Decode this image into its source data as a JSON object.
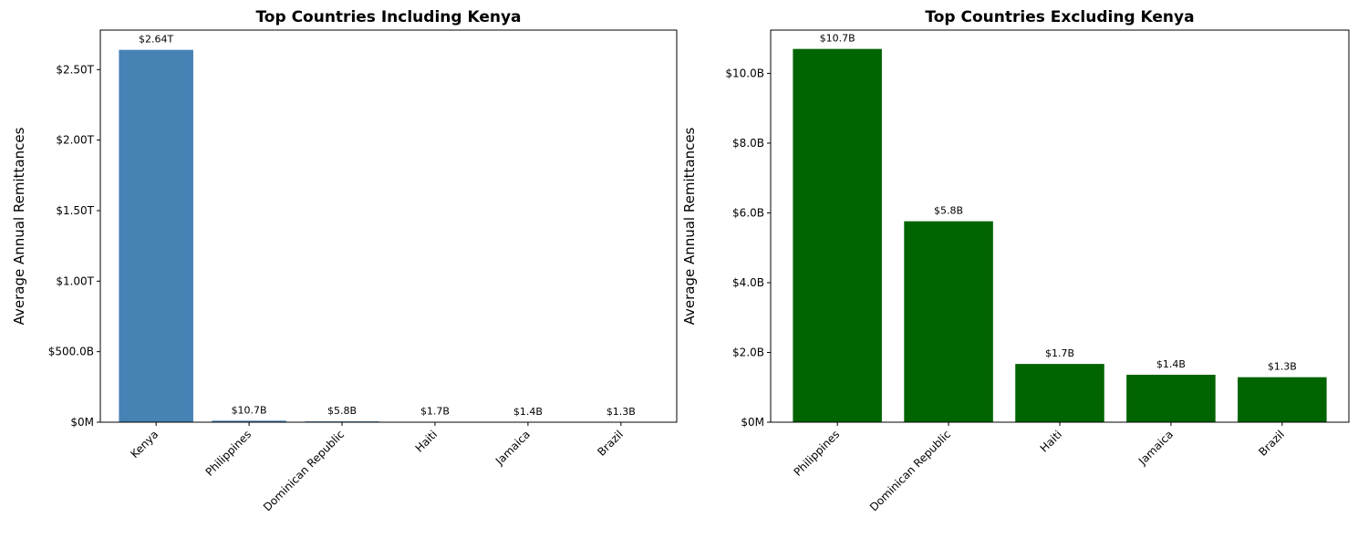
{
  "chart_data": [
    {
      "type": "bar",
      "title": "Top Countries Including Kenya",
      "xlabel": "",
      "ylabel": "Average Annual Remittances",
      "categories": [
        "Kenya",
        "Philippines",
        "Dominican Republic",
        "Haiti",
        "Jamaica",
        "Brazil"
      ],
      "values": [
        2640000000000,
        10700000000,
        5800000000,
        1700000000,
        1400000000,
        1300000000
      ],
      "data_labels": [
        "$2.64T",
        "$10.7B",
        "$5.8B",
        "$1.7B",
        "$1.4B",
        "$1.3B"
      ],
      "ylim": [
        0,
        2780000000000
      ],
      "yticks": [
        0,
        500000000000,
        1000000000000,
        1500000000000,
        2000000000000,
        2500000000000
      ],
      "ytick_labels": [
        "$0M",
        "$500.0B",
        "$1.00T",
        "$1.50T",
        "$2.00T",
        "$2.50T"
      ],
      "bar_color": "#4682b4",
      "grid": false,
      "legend": "none"
    },
    {
      "type": "bar",
      "title": "Top Countries Excluding Kenya",
      "xlabel": "",
      "ylabel": "Average Annual Remittances",
      "categories": [
        "Philippines",
        "Dominican Republic",
        "Haiti",
        "Jamaica",
        "Brazil"
      ],
      "values": [
        10700000000,
        5760000000,
        1670000000,
        1360000000,
        1290000000
      ],
      "data_labels": [
        "$10.7B",
        "$5.8B",
        "$1.7B",
        "$1.4B",
        "$1.3B"
      ],
      "ylim": [
        0,
        11240000000
      ],
      "yticks": [
        0,
        2000000000,
        4000000000,
        6000000000,
        8000000000,
        10000000000
      ],
      "ytick_labels": [
        "$0M",
        "$2.0B",
        "$4.0B",
        "$6.0B",
        "$8.0B",
        "$10.0B"
      ],
      "bar_color": "#006400",
      "grid": false,
      "legend": "none"
    }
  ]
}
